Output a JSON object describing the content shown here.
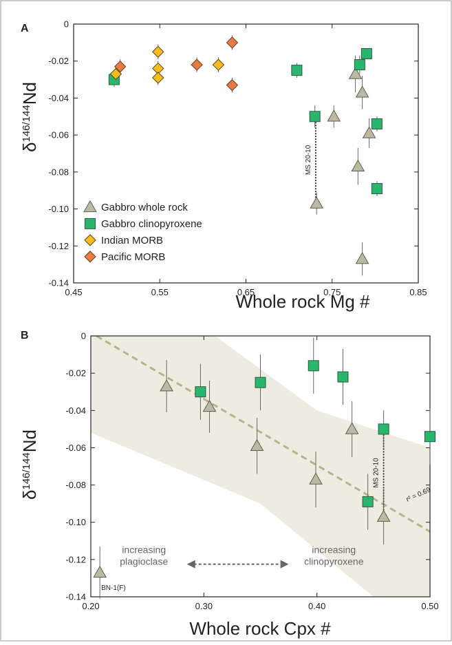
{
  "chart_data": [
    {
      "type": "scatter",
      "panel_label": "A",
      "xlabel": "Whole rock Mg #",
      "ylabel": "δ¹⁴⁶/¹⁴⁴Nd",
      "xlim": [
        0.45,
        0.85
      ],
      "ylim": [
        -0.14,
        0
      ],
      "xticks": [
        "0.45",
        "0.55",
        "0.65",
        "0.75",
        "0.85"
      ],
      "yticks": [
        "0",
        "-0.02",
        "-0.04",
        "-0.06",
        "-0.08",
        "-0.10",
        "-0.12",
        "-0.14"
      ],
      "legend_position": "bottom-left",
      "series": [
        {
          "name": "Gabbro whole rock",
          "marker": "triangle",
          "color": "#bcb9a2",
          "points": [
            {
              "x": 0.777,
              "y": -0.027,
              "err": 0.01
            },
            {
              "x": 0.785,
              "y": -0.037,
              "err": 0.009
            },
            {
              "x": 0.752,
              "y": -0.05,
              "err": 0.006
            },
            {
              "x": 0.793,
              "y": -0.059,
              "err": 0.008
            },
            {
              "x": 0.78,
              "y": -0.077,
              "err": 0.01
            },
            {
              "x": 0.732,
              "y": -0.097,
              "err": 0.006
            },
            {
              "x": 0.785,
              "y": -0.127,
              "err": 0.009
            }
          ]
        },
        {
          "name": "Gabbro clinopyroxene",
          "marker": "square",
          "color": "#2bb66e",
          "points": [
            {
              "x": 0.497,
              "y": -0.03,
              "err": 0.004
            },
            {
              "x": 0.709,
              "y": -0.025,
              "err": 0.004
            },
            {
              "x": 0.782,
              "y": -0.022,
              "err": 0.005
            },
            {
              "x": 0.79,
              "y": -0.016,
              "err": 0.003
            },
            {
              "x": 0.73,
              "y": -0.05,
              "err": 0.006
            },
            {
              "x": 0.802,
              "y": -0.054,
              "err": 0.004
            },
            {
              "x": 0.802,
              "y": -0.089,
              "err": 0.004
            }
          ]
        },
        {
          "name": "Indian MORB",
          "marker": "diamond",
          "color": "#f7bd1f",
          "points": [
            {
              "x": 0.499,
              "y": -0.027,
              "err": 0.004
            },
            {
              "x": 0.548,
              "y": -0.015,
              "err": 0.004
            },
            {
              "x": 0.548,
              "y": -0.024,
              "err": 0.004
            },
            {
              "x": 0.548,
              "y": -0.029,
              "err": 0.004
            },
            {
              "x": 0.618,
              "y": -0.022,
              "err": 0.004
            }
          ]
        },
        {
          "name": "Pacific MORB",
          "marker": "diamond",
          "color": "#ea7a43",
          "points": [
            {
              "x": 0.504,
              "y": -0.023,
              "err": 0.004
            },
            {
              "x": 0.593,
              "y": -0.022,
              "err": 0.004
            },
            {
              "x": 0.634,
              "y": -0.01,
              "err": 0.004
            },
            {
              "x": 0.634,
              "y": -0.033,
              "err": 0.004
            }
          ]
        }
      ],
      "annotations": [
        {
          "text": "MS 20-10",
          "x": 0.731,
          "y1": -0.05,
          "y2": -0.097
        }
      ]
    },
    {
      "type": "scatter",
      "panel_label": "B",
      "xlabel": "Whole rock Cpx #",
      "ylabel": "δ¹⁴⁶/¹⁴⁴Nd",
      "xlim": [
        0.2,
        0.5
      ],
      "ylim": [
        -0.14,
        0
      ],
      "xticks": [
        "0.20",
        "0.30",
        "0.40",
        "0.50"
      ],
      "yticks": [
        "0",
        "-0.02",
        "-0.04",
        "-0.06",
        "-0.08",
        "-0.10",
        "-0.12",
        "-0.14"
      ],
      "series": [
        {
          "name": "Gabbro whole rock",
          "marker": "triangle",
          "color": "#bcb9a2",
          "points": [
            {
              "x": 0.267,
              "y": -0.027,
              "err": 0.014
            },
            {
              "x": 0.305,
              "y": -0.038,
              "err": 0.014
            },
            {
              "x": 0.347,
              "y": -0.059,
              "err": 0.015
            },
            {
              "x": 0.399,
              "y": -0.077,
              "err": 0.015
            },
            {
              "x": 0.431,
              "y": -0.05,
              "err": 0.015
            },
            {
              "x": 0.459,
              "y": -0.097,
              "err": 0.015
            },
            {
              "x": 0.208,
              "y": -0.127,
              "err": 0.014
            }
          ]
        },
        {
          "name": "Gabbro clinopyroxene",
          "marker": "square",
          "color": "#2bb66e",
          "points": [
            {
              "x": 0.297,
              "y": -0.03,
              "err": 0.015
            },
            {
              "x": 0.35,
              "y": -0.025,
              "err": 0.015
            },
            {
              "x": 0.397,
              "y": -0.016,
              "err": 0.015
            },
            {
              "x": 0.423,
              "y": -0.022,
              "err": 0.015
            },
            {
              "x": 0.459,
              "y": -0.05,
              "err": 0.01
            },
            {
              "x": 0.5,
              "y": -0.054,
              "err": 0.015
            },
            {
              "x": 0.445,
              "y": -0.089,
              "err": 0.015
            }
          ]
        }
      ],
      "regression": {
        "label": "r² = 0.69",
        "x1": 0.205,
        "y1": 0.0,
        "x2": 0.5,
        "y2": -0.105,
        "band_upper": [
          [
            0.2,
            0.0
          ],
          [
            0.31,
            0.0
          ],
          [
            0.4,
            -0.04
          ],
          [
            0.5,
            -0.06
          ]
        ],
        "band_lower": [
          [
            0.2,
            -0.052
          ],
          [
            0.35,
            -0.09
          ],
          [
            0.45,
            -0.14
          ],
          [
            0.5,
            -0.14
          ]
        ]
      },
      "annotations": [
        {
          "text": "MS 20-10",
          "x": 0.459,
          "y1": -0.05,
          "y2": -0.097
        },
        {
          "text": "BN-1(F)",
          "x": 0.208,
          "y": -0.127
        }
      ],
      "arrow": {
        "left_label": [
          "increasing",
          "plagioclase"
        ],
        "right_label": [
          "increasing",
          "clinopyroxene"
        ]
      }
    }
  ]
}
